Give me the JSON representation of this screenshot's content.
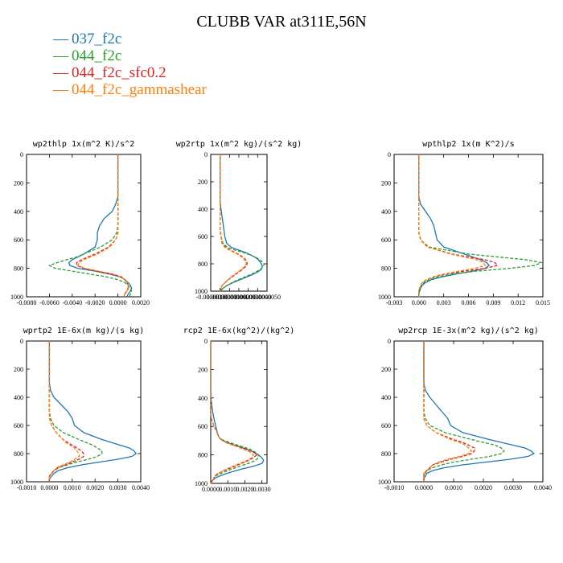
{
  "figure": {
    "title": "CLUBB VAR at311E,56N"
  },
  "legend": [
    {
      "label": "037_f2c",
      "color": "#1f77b4",
      "dash": "solid"
    },
    {
      "label": "044_f2c",
      "color": "#2ca02c",
      "dash": "dashed"
    },
    {
      "label": "044_f2c_sfc0.2",
      "color": "#d62728",
      "dash": "dashed"
    },
    {
      "label": "044_f2c_gammashear",
      "color": "#ff7f0e",
      "dash": "dashed"
    }
  ],
  "chart_data": [
    {
      "type": "line",
      "title": "wp2thlp  1x(m^2 K)/s^2",
      "xlim": [
        -0.008,
        0.002
      ],
      "xticks": [
        -0.008,
        -0.006,
        -0.004,
        -0.002,
        0.0,
        0.002
      ],
      "xtick_labels": [
        "-0.0080",
        "-0.0060",
        "-0.0040",
        "-0.0020",
        "0.0000",
        "0.0020"
      ],
      "ylim": [
        0,
        1000
      ],
      "yticks": [
        0,
        200,
        400,
        600,
        800,
        1000
      ],
      "y_inverted": true,
      "y": [
        0,
        100,
        200,
        300,
        350,
        400,
        450,
        500,
        550,
        600,
        650,
        700,
        720,
        740,
        760,
        780,
        800,
        820,
        840,
        860,
        880,
        900,
        920,
        940,
        960,
        980,
        1000
      ],
      "series": [
        {
          "values": [
            0,
            0,
            0,
            0,
            -0.0002,
            -0.0005,
            -0.0012,
            -0.0016,
            -0.0018,
            -0.0018,
            -0.002,
            -0.003,
            -0.0035,
            -0.004,
            -0.0043,
            -0.0042,
            -0.0035,
            -0.002,
            -0.0008,
            0.0002,
            0.0006,
            0.0009,
            0.0011,
            0.0012,
            0.0011,
            0.0009,
            0.0008
          ]
        },
        {
          "values": [
            0,
            0,
            0,
            0,
            0,
            0,
            0,
            0,
            -0.0001,
            -0.0005,
            -0.0015,
            -0.003,
            -0.0036,
            -0.0045,
            -0.0053,
            -0.006,
            -0.0055,
            -0.004,
            -0.0025,
            -0.001,
            0.0,
            0.0006,
            0.0009,
            0.0011,
            0.0012,
            0.0011,
            0.001
          ]
        },
        {
          "values": [
            0,
            0,
            0,
            0,
            0,
            0,
            0,
            0,
            0,
            -0.0002,
            -0.0008,
            -0.002,
            -0.0026,
            -0.0032,
            -0.0036,
            -0.0036,
            -0.003,
            -0.0018,
            -0.0005,
            0.0003,
            0.0006,
            0.0008,
            0.0009,
            0.0009,
            0.0008,
            0.0006,
            0.0005
          ]
        },
        {
          "values": [
            0,
            0,
            0,
            0,
            0,
            0,
            0,
            0,
            0,
            -0.0002,
            -0.0007,
            -0.0018,
            -0.0024,
            -0.003,
            -0.0034,
            -0.0035,
            -0.0029,
            -0.0017,
            -0.0005,
            0.0003,
            0.0006,
            0.0008,
            0.0009,
            0.0009,
            0.0008,
            0.0006,
            0.0005
          ]
        }
      ]
    },
    {
      "type": "line",
      "title": "wp2rtp  1x(m^2 kg)/(s^2 kg)",
      "xlim": [
        -1e-06,
        5e-06
      ],
      "xticks": [
        -1e-06,
        0.0,
        1e-06,
        2e-06,
        3e-06,
        4e-06,
        5e-06
      ],
      "xtick_labels": [
        "-0.0000010",
        "0.0000000",
        "0.0000010",
        "0.0000020",
        "0.0000030",
        "0.0000040",
        "0.0000050"
      ],
      "ylim": [
        0,
        1000
      ],
      "yticks": [
        0,
        200,
        400,
        600,
        800,
        1000
      ],
      "y_inverted": true,
      "y": [
        0,
        100,
        200,
        300,
        350,
        400,
        450,
        500,
        550,
        600,
        650,
        680,
        700,
        720,
        740,
        760,
        780,
        800,
        820,
        840,
        860,
        880,
        900,
        920,
        940,
        960,
        980,
        1000
      ],
      "series": [
        {
          "values": [
            0,
            0,
            0,
            0,
            0,
            1e-07,
            2e-07,
            3e-07,
            4e-07,
            5e-07,
            7e-07,
            1.2e-06,
            2e-06,
            2.8e-06,
            3.4e-06,
            3.9e-06,
            4.2e-06,
            4.4e-06,
            4.5e-06,
            4.4e-06,
            4e-06,
            3.4e-06,
            2.7e-06,
            2e-06,
            1.3e-06,
            7e-07,
            3e-07,
            0.0
          ]
        },
        {
          "values": [
            0,
            0,
            0,
            0,
            0,
            0,
            0,
            0,
            0,
            1e-07,
            3e-07,
            8e-07,
            1.6e-06,
            2.6e-06,
            3.4e-06,
            4e-06,
            4.4e-06,
            4.7e-06,
            4.6e-06,
            4.3e-06,
            3.8e-06,
            3.2e-06,
            2.5e-06,
            1.8e-06,
            1.2e-06,
            7e-07,
            3e-07,
            0.0
          ]
        },
        {
          "values": [
            0,
            0,
            0,
            0,
            0,
            0,
            0,
            0,
            0,
            1e-07,
            2e-07,
            6e-07,
            1.1e-06,
            1.7e-06,
            2.2e-06,
            2.6e-06,
            2.8e-06,
            2.9e-06,
            2.7e-06,
            2.4e-06,
            2e-06,
            1.6e-06,
            1.2e-06,
            8e-07,
            5e-07,
            2e-07,
            1e-07,
            0.0
          ]
        },
        {
          "values": [
            0,
            0,
            0,
            0,
            0,
            0,
            0,
            0,
            0,
            1e-07,
            2e-07,
            5e-07,
            1e-06,
            1.6e-06,
            2.1e-06,
            2.5e-06,
            2.7e-06,
            2.8e-06,
            2.6e-06,
            2.3e-06,
            1.9e-06,
            1.5e-06,
            1.1e-06,
            8e-07,
            5e-07,
            2e-07,
            1e-07,
            0.0
          ]
        }
      ]
    },
    {
      "type": "line",
      "title": "wpthlp2  1x(m K^2)/s",
      "xlim": [
        -0.003,
        0.015
      ],
      "xticks": [
        -0.003,
        0.0,
        0.003,
        0.006,
        0.009,
        0.012,
        0.015
      ],
      "xtick_labels": [
        "-0.003",
        "0.000",
        "0.003",
        "0.006",
        "0.009",
        "0.012",
        "0.015"
      ],
      "ylim": [
        0,
        1000
      ],
      "yticks": [
        0,
        200,
        400,
        600,
        800,
        1000
      ],
      "y_inverted": true,
      "y": [
        0,
        100,
        200,
        300,
        350,
        400,
        450,
        500,
        550,
        600,
        650,
        700,
        720,
        740,
        760,
        780,
        800,
        820,
        840,
        860,
        880,
        900,
        920,
        940,
        960,
        980,
        1000
      ],
      "series": [
        {
          "values": [
            0,
            0,
            0,
            0,
            0.0002,
            0.0008,
            0.0014,
            0.0018,
            0.002,
            0.0022,
            0.003,
            0.0055,
            0.0065,
            0.0075,
            0.0082,
            0.0085,
            0.008,
            0.0065,
            0.0045,
            0.0028,
            0.0015,
            0.0008,
            0.0004,
            0.0002,
            0.0001,
            0,
            0
          ]
        },
        {
          "values": [
            0,
            0,
            0,
            0,
            0,
            0,
            0,
            0,
            0,
            0.0002,
            0.0012,
            0.006,
            0.0095,
            0.013,
            0.0148,
            0.014,
            0.011,
            0.007,
            0.004,
            0.0022,
            0.0012,
            0.0006,
            0.0003,
            0.0001,
            0,
            0,
            0
          ]
        },
        {
          "values": [
            0,
            0,
            0,
            0,
            0,
            0,
            0,
            0,
            0,
            0.0002,
            0.001,
            0.004,
            0.006,
            0.008,
            0.0092,
            0.0095,
            0.008,
            0.0055,
            0.0032,
            0.0018,
            0.0009,
            0.0004,
            0.0002,
            0.0001,
            0,
            0,
            0
          ]
        },
        {
          "values": [
            0,
            0,
            0,
            0,
            0,
            0,
            0,
            0,
            0,
            0.0002,
            0.001,
            0.0038,
            0.0055,
            0.007,
            0.0078,
            0.008,
            0.0068,
            0.0048,
            0.003,
            0.0017,
            0.0009,
            0.0004,
            0.0002,
            0.0001,
            0,
            0,
            0
          ]
        }
      ]
    },
    {
      "type": "line",
      "title": "wprtp2  1E-6x(m kg)/(s kg)",
      "xlim": [
        -0.001,
        0.004
      ],
      "xticks": [
        -0.001,
        0.0,
        0.001,
        0.002,
        0.003,
        0.004
      ],
      "xtick_labels": [
        "-0.0010",
        "0.0000",
        "0.0010",
        "0.0020",
        "0.0030",
        "0.0040"
      ],
      "ylim": [
        0,
        1000
      ],
      "yticks": [
        0,
        200,
        400,
        600,
        800,
        1000
      ],
      "y_inverted": true,
      "y": [
        0,
        100,
        200,
        300,
        350,
        400,
        450,
        500,
        550,
        600,
        650,
        700,
        720,
        740,
        760,
        780,
        800,
        820,
        840,
        860,
        880,
        900,
        920,
        940,
        960,
        980,
        1000
      ],
      "series": [
        {
          "values": [
            0,
            0,
            0,
            0,
            5e-05,
            0.0002,
            0.0005,
            0.0008,
            0.001,
            0.0011,
            0.0015,
            0.0023,
            0.0027,
            0.0031,
            0.0035,
            0.0037,
            0.0038,
            0.0036,
            0.003,
            0.0022,
            0.0014,
            0.0008,
            0.0004,
            0.0002,
            0.0001,
            0,
            0
          ]
        },
        {
          "values": [
            0,
            0,
            0,
            0,
            0,
            0,
            0,
            0,
            5e-05,
            0.0002,
            0.0006,
            0.0013,
            0.0016,
            0.0019,
            0.0021,
            0.0023,
            0.0023,
            0.0021,
            0.0017,
            0.0012,
            0.0008,
            0.0004,
            0.0002,
            0.0001,
            0,
            0,
            0
          ]
        },
        {
          "values": [
            0,
            0,
            0,
            0,
            0,
            0,
            0,
            0,
            0,
            0.0001,
            0.0003,
            0.0006,
            0.0008,
            0.001,
            0.0012,
            0.0014,
            0.0015,
            0.0015,
            0.0013,
            0.001,
            0.0007,
            0.0004,
            0.0002,
            0.0001,
            0,
            0,
            0
          ]
        },
        {
          "values": [
            0,
            0,
            0,
            0,
            0,
            0,
            0,
            0,
            0,
            0.0001,
            0.0003,
            0.0006,
            0.0007,
            0.0009,
            0.0011,
            0.0012,
            0.0013,
            0.0013,
            0.0011,
            0.0009,
            0.0006,
            0.0003,
            0.0002,
            0.0001,
            0,
            0,
            0
          ]
        }
      ]
    },
    {
      "type": "line",
      "title": "rcp2  1E-6x(kg^2)/(kg^2)",
      "xlim": [
        0.0,
        0.0033
      ],
      "xticks": [
        0.0,
        0.001,
        0.002,
        0.003
      ],
      "xtick_labels": [
        "0.0000",
        "0.0010",
        "0.0020",
        "0.0030"
      ],
      "ylim": [
        0,
        1000
      ],
      "yticks": [
        0,
        200,
        400,
        600,
        800,
        1000
      ],
      "y_inverted": true,
      "y": [
        0,
        100,
        200,
        300,
        350,
        400,
        450,
        500,
        550,
        600,
        650,
        680,
        700,
        720,
        740,
        760,
        780,
        800,
        820,
        840,
        860,
        880,
        900,
        920,
        940,
        960,
        980,
        1000
      ],
      "series": [
        {
          "values": [
            0,
            0,
            0,
            0,
            0,
            2e-05,
            6e-05,
            0.00012,
            0.0002,
            0.0003,
            0.0004,
            0.0005,
            0.0007,
            0.0011,
            0.0016,
            0.0021,
            0.0025,
            0.0028,
            0.003,
            0.0031,
            0.003,
            0.0025,
            0.0018,
            0.0012,
            0.0007,
            0.0003,
            0.0001,
            0.0
          ]
        },
        {
          "values": [
            0,
            0,
            0,
            0,
            0,
            0,
            0,
            0,
            5e-05,
            0.0002,
            0.0004,
            0.0005,
            0.0008,
            0.0013,
            0.0018,
            0.0023,
            0.0026,
            0.0028,
            0.0028,
            0.0026,
            0.0022,
            0.0017,
            0.0012,
            0.0008,
            0.0004,
            0.0002,
            0.0001,
            0.0
          ]
        },
        {
          "values": [
            0,
            0,
            0,
            0,
            0,
            0,
            0,
            0,
            5e-05,
            0.0002,
            0.0004,
            0.0005,
            0.0007,
            0.0011,
            0.0016,
            0.0021,
            0.0025,
            0.0027,
            0.0025,
            0.0022,
            0.0018,
            0.0014,
            0.001,
            0.0006,
            0.0003,
            0.0002,
            0.0001,
            0.0
          ]
        },
        {
          "values": [
            0,
            0,
            0,
            0,
            0,
            0,
            0,
            0,
            5e-05,
            0.0002,
            0.0004,
            0.0005,
            0.0007,
            0.001,
            0.0015,
            0.0019,
            0.0023,
            0.0025,
            0.0024,
            0.0021,
            0.0017,
            0.0013,
            0.0009,
            0.0006,
            0.0003,
            0.0002,
            0.0001,
            0.0
          ]
        }
      ]
    },
    {
      "type": "line",
      "title": "wp2rcp  1E-3x(m^2 kg)/(s^2 kg)",
      "xlim": [
        -0.001,
        0.004
      ],
      "xticks": [
        -0.001,
        0.0,
        0.001,
        0.002,
        0.003,
        0.004
      ],
      "xtick_labels": [
        "-0.0010",
        "0.0000",
        "0.0010",
        "0.0020",
        "0.0030",
        "0.0040"
      ],
      "ylim": [
        0,
        1000
      ],
      "yticks": [
        0,
        200,
        400,
        600,
        800,
        1000
      ],
      "y_inverted": true,
      "y": [
        0,
        100,
        200,
        300,
        350,
        400,
        450,
        500,
        550,
        600,
        650,
        700,
        720,
        740,
        760,
        780,
        800,
        820,
        840,
        860,
        880,
        900,
        920,
        940,
        960,
        980,
        1000
      ],
      "series": [
        {
          "values": [
            0,
            0,
            0,
            0,
            5e-05,
            0.0002,
            0.0004,
            0.0006,
            0.0008,
            0.0009,
            0.0013,
            0.0022,
            0.0026,
            0.003,
            0.0034,
            0.0036,
            0.0037,
            0.0035,
            0.0029,
            0.0021,
            0.0013,
            0.0007,
            0.0003,
            0.0001,
            5e-05,
            0,
            0
          ]
        },
        {
          "values": [
            0,
            0,
            0,
            0,
            0,
            0,
            0,
            0,
            5e-05,
            0.0002,
            0.0007,
            0.0016,
            0.002,
            0.0024,
            0.0026,
            0.0027,
            0.0026,
            0.0022,
            0.0016,
            0.001,
            0.0006,
            0.0003,
            0.0001,
            5e-05,
            0,
            0,
            0
          ]
        },
        {
          "values": [
            0,
            0,
            0,
            0,
            0,
            0,
            0,
            0,
            0,
            0.0001,
            0.0004,
            0.001,
            0.0013,
            0.0015,
            0.0017,
            0.0017,
            0.0016,
            0.0013,
            0.0009,
            0.0006,
            0.0003,
            0.0002,
            0.0001,
            0,
            0,
            0,
            0
          ]
        },
        {
          "values": [
            0,
            0,
            0,
            0,
            0,
            0,
            0,
            0,
            0,
            0.0001,
            0.0004,
            0.0009,
            0.0012,
            0.0014,
            0.0015,
            0.0016,
            0.0015,
            0.0012,
            0.0008,
            0.0005,
            0.0003,
            0.0002,
            0.0001,
            0,
            0,
            0,
            0
          ]
        }
      ]
    }
  ]
}
